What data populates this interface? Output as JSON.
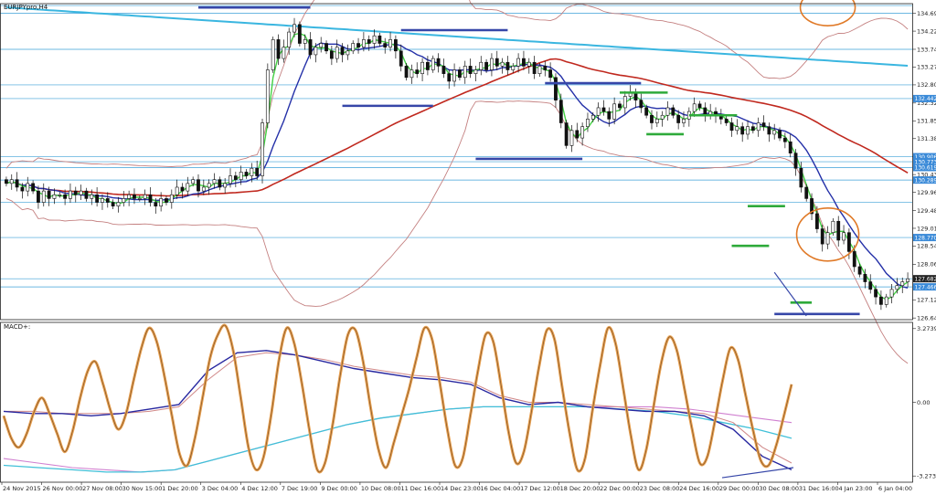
{
  "window": {
    "symbol_label": "EURJPYpro,H4",
    "indicator_label": "MACD+:"
  },
  "colors": {
    "background": "#ffffff",
    "frame": "#222222",
    "candle": "#111111",
    "hline": "#3ca0d8",
    "slow_ma": "#3ab6e0",
    "red_ma": "#c0281e",
    "band": "#c48080",
    "blue_ma": "#2430a8",
    "green_ma": "#44d044",
    "level_blue": "#3646a8",
    "level_green": "#2eaa3a",
    "circle": "#e07a28",
    "osc": "#e8a050",
    "osc_inner": "#8a5a2a",
    "macd_main": "#2828a0",
    "macd_signal": "#d08888",
    "macd_slow": "#40c0d8",
    "macd_slow2": "#d080d0",
    "tag_blue": "#3a8ad8",
    "tag_dark": "#222222"
  },
  "chart_data": [
    {
      "type": "candlestick",
      "title": "EURJPYpro,H4",
      "x_tick_labels": [
        "24 Nov 2015",
        "26 Nov 00:00",
        "27 Nov 08:00",
        "30 Nov 15:00",
        "1 Dec 20:00",
        "3 Dec 04:00",
        "4 Dec 12:00",
        "7 Dec 19:00",
        "9 Dec 00:00",
        "10 Dec 08:00",
        "11 Dec 16:00",
        "14 Dec 23:00",
        "16 Dec 04:00",
        "17 Dec 12:00",
        "18 Dec 20:00",
        "22 Dec 00:00",
        "23 Dec 08:00",
        "24 Dec 16:00",
        "29 Dec 00:00",
        "30 Dec 08:00",
        "31 Dec 16:00",
        "4 Jan 23:00",
        "6 Jan 04:00"
      ],
      "y_tick_labels": [
        "134.694",
        "134.224",
        "133.744",
        "133.274",
        "132.804",
        "132.324",
        "131.854",
        "131.384",
        "130.904",
        "130.434",
        "129.964",
        "129.484",
        "129.014",
        "128.544",
        "128.064",
        "127.124",
        "126.644"
      ],
      "ylim": [
        126.6,
        134.95
      ],
      "price_tags": [
        {
          "label": "132.442",
          "value": 132.442,
          "style": "blue"
        },
        {
          "label": "130.906",
          "value": 130.906,
          "style": "blue"
        },
        {
          "label": "130.773",
          "value": 130.773,
          "style": "blue"
        },
        {
          "label": "130.619",
          "value": 130.619,
          "style": "blue"
        },
        {
          "label": "130.289",
          "value": 130.289,
          "style": "blue"
        },
        {
          "label": "128.770",
          "value": 128.77,
          "style": "blue"
        },
        {
          "label": "127.682",
          "value": 127.682,
          "style": "dark"
        },
        {
          "label": "127.466",
          "value": 127.466,
          "style": "blue"
        }
      ],
      "horizontal_lines": [
        134.9,
        134.694,
        133.744,
        132.804,
        132.442,
        130.906,
        130.773,
        130.619,
        130.289,
        129.7,
        128.77,
        127.682,
        127.466
      ],
      "closes": [
        130.2,
        130.3,
        130.1,
        130.0,
        130.2,
        130.0,
        129.7,
        130.0,
        129.8,
        129.9,
        129.9,
        129.8,
        130.0,
        129.9,
        130.0,
        129.8,
        129.9,
        129.7,
        129.8,
        129.7,
        129.6,
        129.7,
        129.8,
        129.9,
        129.8,
        129.8,
        129.9,
        129.7,
        129.6,
        129.8,
        129.7,
        129.9,
        130.1,
        130.0,
        130.2,
        130.3,
        130.0,
        130.1,
        130.2,
        130.3,
        130.1,
        130.2,
        130.4,
        130.3,
        130.5,
        130.4,
        130.6,
        130.4,
        131.8,
        133.2,
        134.0,
        133.5,
        133.8,
        134.2,
        134.4,
        133.9,
        134.0,
        133.6,
        133.8,
        133.9,
        133.7,
        133.5,
        133.8,
        133.6,
        133.7,
        133.9,
        133.8,
        134.0,
        133.9,
        134.1,
        133.9,
        133.8,
        134.0,
        133.7,
        133.3,
        133.0,
        133.2,
        133.1,
        133.4,
        133.2,
        133.5,
        133.3,
        133.1,
        132.9,
        133.2,
        133.0,
        133.3,
        133.1,
        133.2,
        133.4,
        133.2,
        133.5,
        133.3,
        133.4,
        133.2,
        133.3,
        133.5,
        133.3,
        133.4,
        133.1,
        133.3,
        133.2,
        133.0,
        132.4,
        131.8,
        131.2,
        131.6,
        131.4,
        131.7,
        131.9,
        132.0,
        132.2,
        132.1,
        131.9,
        132.3,
        132.2,
        132.5,
        132.6,
        132.4,
        132.2,
        132.0,
        131.8,
        131.9,
        132.0,
        132.2,
        132.0,
        131.8,
        131.9,
        132.1,
        132.3,
        132.2,
        132.0,
        132.1,
        132.0,
        131.9,
        131.8,
        131.6,
        131.7,
        131.5,
        131.7,
        131.6,
        131.8,
        131.7,
        131.5,
        131.6,
        131.4,
        131.3,
        131.0,
        130.6,
        130.1,
        129.8,
        129.4,
        129.0,
        128.6,
        128.9,
        129.2,
        128.7,
        128.9,
        128.4,
        128.0,
        127.8,
        127.6,
        127.4,
        127.2,
        127.0,
        127.2,
        127.4,
        127.5,
        127.6,
        127.68
      ],
      "levels": [
        {
          "color": "level_blue",
          "start": 36,
          "end": 57,
          "value": 134.85
        },
        {
          "color": "level_blue",
          "start": 74,
          "end": 94,
          "value": 134.25
        },
        {
          "color": "level_blue",
          "start": 63,
          "end": 80,
          "value": 132.25
        },
        {
          "color": "level_blue",
          "start": 101,
          "end": 119,
          "value": 132.85
        },
        {
          "color": "level_blue",
          "start": 88,
          "end": 108,
          "value": 130.85
        },
        {
          "color": "level_green",
          "start": 115,
          "end": 124,
          "value": 132.6
        },
        {
          "color": "level_green",
          "start": 120,
          "end": 127,
          "value": 131.5
        },
        {
          "color": "level_green",
          "start": 128,
          "end": 137,
          "value": 132.0
        },
        {
          "color": "level_green",
          "start": 139,
          "end": 146,
          "value": 129.6
        },
        {
          "color": "level_green",
          "start": 136,
          "end": 143,
          "value": 128.55
        },
        {
          "color": "level_green",
          "start": 147,
          "end": 151,
          "value": 127.05
        },
        {
          "color": "level_blue",
          "start": 144,
          "end": 160,
          "value": 126.75
        }
      ]
    },
    {
      "type": "line",
      "title": "MACD+:",
      "y_tick_labels": [
        "3.2739",
        "0.00",
        "-3.2739"
      ],
      "ylim": [
        -3.55,
        3.55
      ],
      "series": [
        {
          "key": "oscillator",
          "values": [
            -0.6,
            -1.6,
            -2.0,
            -1.4,
            -0.4,
            0.2,
            -0.5,
            -1.4,
            -2.2,
            -1.3,
            0.2,
            1.4,
            1.8,
            0.8,
            -0.4,
            -1.2,
            -0.5,
            1.0,
            2.4,
            3.3,
            2.7,
            1.2,
            -0.6,
            -2.3,
            -2.8,
            -1.6,
            0.2,
            2.0,
            3.0,
            3.4,
            2.3,
            0.2,
            -2.0,
            -3.0,
            -2.4,
            -0.5,
            1.9,
            3.3,
            2.6,
            0.8,
            -1.3,
            -3.0,
            -2.7,
            -1.0,
            1.2,
            3.0,
            3.2,
            1.8,
            -0.3,
            -2.1,
            -2.9,
            -1.8,
            -0.6,
            0.6,
            2.0,
            3.3,
            2.8,
            0.9,
            -1.2,
            -2.8,
            -2.5,
            -0.6,
            1.4,
            3.0,
            2.7,
            0.8,
            -1.3,
            -2.7,
            -2.2,
            -0.4,
            1.6,
            3.2,
            2.8,
            0.7,
            -1.4,
            -3.0,
            -2.5,
            -0.3,
            1.7,
            3.3,
            2.6,
            0.6,
            -1.5,
            -3.0,
            -2.1,
            -0.1,
            1.8,
            2.9,
            2.3,
            0.6,
            -1.2,
            -2.7,
            -2.4,
            -0.8,
            1.0,
            2.4,
            1.9,
            0.3,
            -1.3,
            -2.6,
            -2.8,
            -1.9,
            -0.6,
            0.8
          ]
        },
        {
          "key": "main",
          "values": [
            -0.4,
            -0.5,
            -0.5,
            -0.6,
            -0.5,
            -0.3,
            -0.1,
            1.4,
            2.2,
            2.3,
            2.1,
            1.8,
            1.5,
            1.3,
            1.1,
            1.0,
            0.8,
            0.2,
            -0.1,
            0.0,
            -0.2,
            -0.3,
            -0.4,
            -0.4,
            -0.6,
            -1.2,
            -2.4,
            -3.0
          ]
        },
        {
          "key": "signal",
          "values": [
            -0.4,
            -0.4,
            -0.5,
            -0.5,
            -0.5,
            -0.4,
            -0.2,
            1.0,
            2.0,
            2.2,
            2.1,
            1.9,
            1.6,
            1.4,
            1.2,
            1.1,
            0.9,
            0.3,
            0.0,
            0.0,
            -0.1,
            -0.2,
            -0.3,
            -0.4,
            -0.5,
            -0.9,
            -2.0,
            -2.7
          ]
        },
        {
          "key": "slow",
          "values": [
            -2.8,
            -2.9,
            -3.0,
            -3.1,
            -3.1,
            -3.0,
            -2.6,
            -2.2,
            -1.8,
            -1.4,
            -1.0,
            -0.7,
            -0.5,
            -0.3,
            -0.2,
            -0.2,
            -0.2,
            -0.2,
            -0.3,
            -0.4,
            -0.6,
            -0.9,
            -1.2,
            -1.6
          ]
        },
        {
          "key": "slow2",
          "values": [
            -2.5,
            -2.7,
            -2.9,
            -3.0,
            -3.1,
            -3.0,
            -2.6,
            -2.2,
            -1.8,
            -1.4,
            -1.0,
            -0.7,
            -0.5,
            -0.3,
            -0.2,
            -0.2,
            -0.2,
            -0.2,
            -0.2,
            -0.2,
            -0.3,
            -0.5,
            -0.7,
            -0.9
          ]
        }
      ]
    }
  ]
}
